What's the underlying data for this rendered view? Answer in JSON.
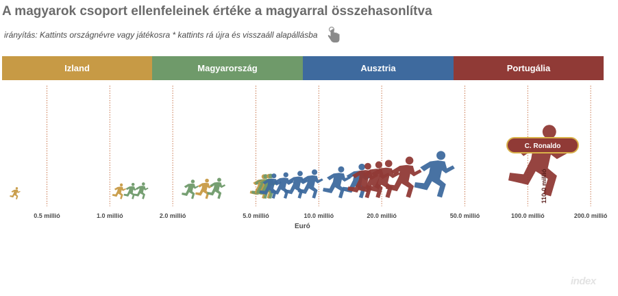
{
  "title": "A magyarok csoport ellenfeleinek értéke a magyarral összehasonlítva",
  "subtitle": "irányítás: Kattints  országnévre vagy játékosra * kattints rá újra és visszaáll alapállásba",
  "icons": {
    "hand": "hand-pointer-icon",
    "player": "running-player-icon"
  },
  "teams": [
    {
      "name": "Izland",
      "color": "#c79a45"
    },
    {
      "name": "Magyarország",
      "color": "#6f9a6a"
    },
    {
      "name": "Ausztria",
      "color": "#3e6a9e"
    },
    {
      "name": "Portugália",
      "color": "#903a36"
    }
  ],
  "chart_data": {
    "type": "scatter",
    "scale": "log",
    "xlabel": "Euró",
    "xlim": [
      0.3,
      230
    ],
    "x_ticks": [
      0.5,
      1.0,
      2.0,
      5.0,
      10.0,
      20.0,
      50.0,
      100.0,
      200.0
    ],
    "tick_labels": [
      "0.5 millió",
      "1.0 millió",
      "2.0 millió",
      "5.0 millió",
      "10.0 millió",
      "20.0 millió",
      "50.0 millió",
      "100.0 millió",
      "200.0 millió"
    ],
    "grid": "vertical",
    "series": [
      {
        "name": "Izland",
        "color": "#c79a45",
        "values": [
          0.35,
          1.1,
          2.8,
          5.2,
          5.5
        ]
      },
      {
        "name": "Magyarország",
        "color": "#6f9a6a",
        "values": [
          1.25,
          1.4,
          2.4,
          3.2,
          5.3,
          5.6
        ]
      },
      {
        "name": "Ausztria",
        "color": "#3e6a9e",
        "values": [
          5.8,
          6.6,
          7.7,
          9.0,
          12.0,
          15.0,
          35.0
        ]
      },
      {
        "name": "Portugália",
        "color": "#903a36",
        "values": [
          16.0,
          18.0,
          20.0,
          25.0,
          110.0
        ]
      }
    ],
    "highlight": {
      "player": "C. Ronaldo",
      "value": 110.0,
      "label": "110.0 millió"
    }
  },
  "watermark": "index"
}
